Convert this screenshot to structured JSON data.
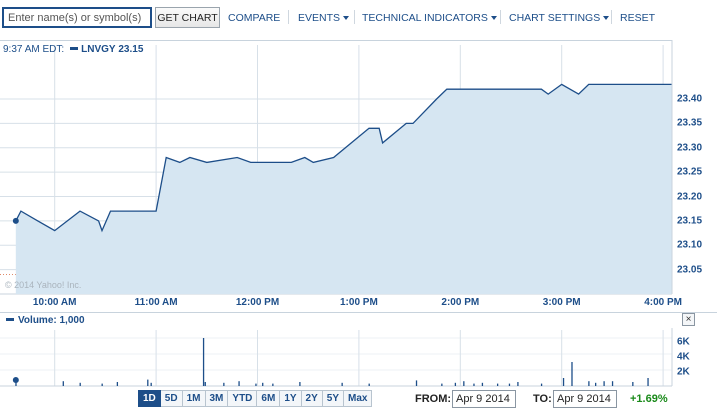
{
  "toolbar": {
    "search_placeholder": "Enter name(s) or symbol(s)",
    "get_chart": "GET CHART",
    "compare": "COMPARE",
    "events": "EVENTS",
    "technical_indicators": "TECHNICAL INDICATORS",
    "chart_settings": "CHART SETTINGS",
    "reset": "RESET"
  },
  "legend": {
    "time": "9:37 AM EDT:",
    "symbol": "LNVGY",
    "value": "23.15"
  },
  "watermark": "© 2014 Yahoo! Inc.",
  "volume": {
    "title": "Volume: 1,000",
    "close": "×",
    "axis_labels": [
      "6K",
      "4K",
      "2K"
    ]
  },
  "range_buttons": [
    "1D",
    "5D",
    "1M",
    "3M",
    "YTD",
    "6M",
    "1Y",
    "2Y",
    "5Y",
    "Max"
  ],
  "active_range": "1D",
  "from_label": "FROM:",
  "from_value": "Apr 9 2014",
  "to_label": "TO:",
  "to_value": "Apr 9 2014",
  "change": "+1.69%",
  "colors": {
    "line": "#1d4e89",
    "fill": "#d6e6f2",
    "grid": "#d7e0e8",
    "positive": "#1a8a1a"
  },
  "chart_data": [
    {
      "type": "area",
      "x_ticks": [
        "10:00 AM",
        "11:00 AM",
        "12:00 PM",
        "1:00 PM",
        "2:00 PM",
        "3:00 PM",
        "4:00 PM"
      ],
      "y_ticks": [
        "23.40",
        "23.35",
        "23.30",
        "23.25",
        "23.20",
        "23.15",
        "23.10",
        "23.05"
      ],
      "ylim": [
        23.0,
        23.48
      ],
      "grid": true,
      "previous_close_line": 23.04,
      "series": [
        {
          "x_minutes": [
            7,
            10,
            20,
            30,
            45,
            56,
            58,
            63,
            85,
            90,
            96,
            104,
            110,
            120,
            138,
            146,
            160,
            170,
            178,
            183,
            195,
            216,
            222,
            224,
            238,
            240,
            242,
            256,
            262,
            268,
            277,
            278,
            283,
            290,
            295,
            318,
            322,
            330,
            340,
            346,
            360,
            368,
            375,
            382,
            390
          ],
          "y": [
            23.15,
            23.17,
            23.15,
            23.13,
            23.17,
            23.15,
            23.13,
            23.17,
            23.17,
            23.17,
            23.28,
            23.27,
            23.28,
            23.27,
            23.28,
            23.27,
            23.27,
            23.27,
            23.28,
            23.27,
            23.28,
            23.34,
            23.34,
            23.31,
            23.35,
            23.35,
            23.35,
            23.4,
            23.42,
            23.42,
            23.42,
            23.42,
            23.42,
            23.42,
            23.42,
            23.42,
            23.41,
            23.43,
            23.41,
            23.43,
            23.43,
            23.43,
            23.43,
            23.43,
            23.43
          ]
        }
      ]
    },
    {
      "type": "bar",
      "ylim": [
        0,
        7000
      ],
      "x_minutes": [
        7,
        35,
        45,
        58,
        67,
        85,
        87,
        118,
        119,
        130,
        139,
        149,
        153,
        159,
        175,
        200,
        216,
        244,
        259,
        267,
        272,
        278,
        283,
        292,
        299,
        304,
        318,
        331,
        336,
        346,
        350,
        355,
        360,
        372,
        381
      ],
      "values": [
        1000,
        600,
        400,
        300,
        500,
        800,
        400,
        6000,
        500,
        400,
        600,
        300,
        400,
        300,
        500,
        400,
        300,
        700,
        300,
        400,
        600,
        300,
        400,
        300,
        300,
        500,
        300,
        1000,
        3000,
        600,
        400,
        600,
        600,
        500,
        1000
      ]
    }
  ]
}
